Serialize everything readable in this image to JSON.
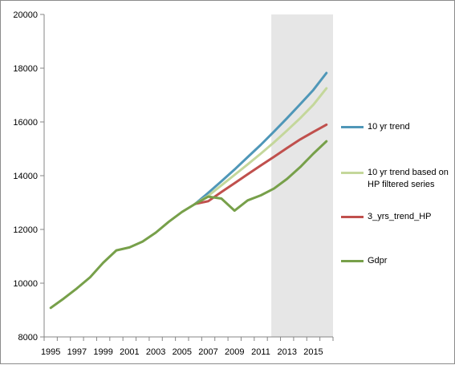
{
  "chart_data": {
    "type": "line",
    "x": [
      1995,
      1996,
      1997,
      1998,
      1999,
      2000,
      2001,
      2002,
      2003,
      2004,
      2005,
      2006,
      2007,
      2008,
      2009,
      2010,
      2011,
      2012,
      2013,
      2014,
      2015,
      2016
    ],
    "xticks": [
      "1995",
      "1997",
      "1999",
      "2001",
      "2003",
      "2005",
      "2007",
      "2009",
      "2011",
      "2013",
      "2015"
    ],
    "yticks": [
      "8000",
      "10000",
      "12000",
      "14000",
      "16000",
      "18000",
      "20000"
    ],
    "ylim": [
      8000,
      20000
    ],
    "xlim": [
      1994.5,
      2016.5
    ],
    "shaded_region": [
      2011.8,
      2016.5
    ],
    "shade_color": "#e6e6e6",
    "grid": false,
    "legend_position": "right",
    "series": [
      {
        "name": "10 yr trend",
        "color": "#4f97b8",
        "x": [
          2006,
          2007,
          2008,
          2009,
          2010,
          2011,
          2012,
          2013,
          2014,
          2015,
          2016
        ],
        "values": [
          12950,
          13360,
          13790,
          14230,
          14690,
          15150,
          15640,
          16140,
          16660,
          17190,
          17820
        ]
      },
      {
        "name": "10 yr trend based on HP filtered series",
        "color": "#c4d79b",
        "x": [
          2006,
          2007,
          2008,
          2009,
          2010,
          2011,
          2012,
          2013,
          2014,
          2015,
          2016
        ],
        "values": [
          12950,
          13250,
          13640,
          14030,
          14420,
          14820,
          15240,
          15680,
          16140,
          16640,
          17250
        ]
      },
      {
        "name": "3_yrs_trend_HP",
        "color": "#c0504d",
        "x": [
          2006,
          2007,
          2008,
          2009,
          2010,
          2011,
          2012,
          2013,
          2014,
          2015,
          2016
        ],
        "values": [
          12950,
          13050,
          13390,
          13720,
          14050,
          14380,
          14700,
          15030,
          15350,
          15630,
          15900
        ]
      },
      {
        "name": "Gdpr",
        "color": "#77a04a",
        "x": [
          1995,
          1996,
          1997,
          1998,
          1999,
          2000,
          2001,
          2002,
          2003,
          2004,
          2005,
          2006,
          2007,
          2008,
          2009,
          2010,
          2011,
          2012,
          2013,
          2014,
          2015,
          2016
        ],
        "values": [
          9080,
          9430,
          9810,
          10220,
          10760,
          11220,
          11330,
          11550,
          11880,
          12290,
          12650,
          12950,
          13220,
          13150,
          12700,
          13080,
          13270,
          13520,
          13880,
          14320,
          14820,
          15280
        ]
      }
    ]
  }
}
